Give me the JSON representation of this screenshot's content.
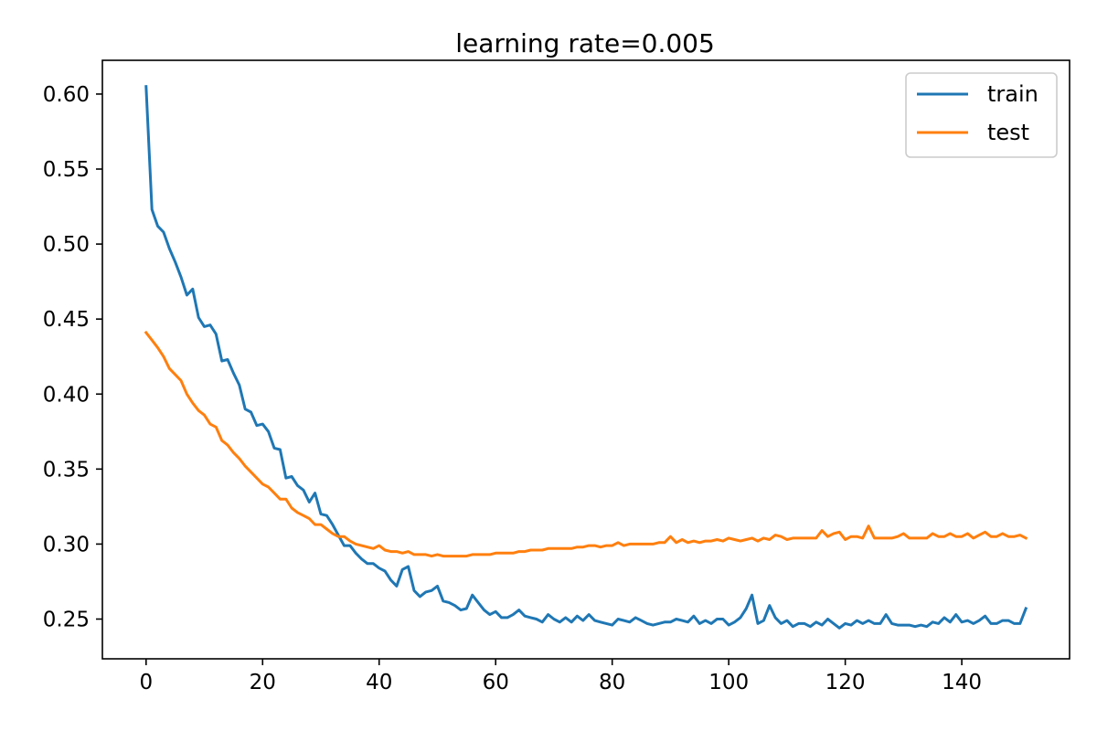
{
  "chart_data": {
    "type": "line",
    "title": "learning rate=0.005",
    "xlabel": "",
    "ylabel": "",
    "xlim": [
      -7.5,
      158.5
    ],
    "ylim": [
      0.2235,
      0.6225
    ],
    "xticks": [
      0,
      20,
      40,
      60,
      80,
      100,
      120,
      140
    ],
    "yticks": [
      0.25,
      0.3,
      0.35,
      0.4,
      0.45,
      0.5,
      0.55,
      0.6
    ],
    "ytick_labels": [
      "0.25",
      "0.30",
      "0.35",
      "0.40",
      "0.45",
      "0.50",
      "0.55",
      "0.60"
    ],
    "grid": false,
    "legend_position": "top-right",
    "series": [
      {
        "name": "train",
        "color": "#1f77b4",
        "values": [
          0.605,
          0.523,
          0.512,
          0.508,
          0.497,
          0.488,
          0.478,
          0.466,
          0.47,
          0.451,
          0.445,
          0.446,
          0.44,
          0.422,
          0.423,
          0.414,
          0.406,
          0.39,
          0.388,
          0.379,
          0.38,
          0.375,
          0.364,
          0.363,
          0.344,
          0.345,
          0.339,
          0.336,
          0.328,
          0.334,
          0.32,
          0.319,
          0.313,
          0.306,
          0.299,
          0.299,
          0.294,
          0.29,
          0.287,
          0.287,
          0.284,
          0.282,
          0.276,
          0.272,
          0.283,
          0.285,
          0.269,
          0.265,
          0.268,
          0.269,
          0.272,
          0.262,
          0.261,
          0.259,
          0.256,
          0.257,
          0.266,
          0.261,
          0.256,
          0.253,
          0.255,
          0.251,
          0.251,
          0.253,
          0.256,
          0.252,
          0.251,
          0.25,
          0.248,
          0.253,
          0.25,
          0.248,
          0.251,
          0.248,
          0.252,
          0.249,
          0.253,
          0.249,
          0.248,
          0.247,
          0.246,
          0.25,
          0.249,
          0.248,
          0.251,
          0.249,
          0.247,
          0.246,
          0.247,
          0.248,
          0.248,
          0.25,
          0.249,
          0.248,
          0.252,
          0.247,
          0.249,
          0.247,
          0.25,
          0.25,
          0.246,
          0.248,
          0.251,
          0.257,
          0.266,
          0.247,
          0.249,
          0.259,
          0.251,
          0.247,
          0.249,
          0.245,
          0.247,
          0.247,
          0.245,
          0.248,
          0.246,
          0.25,
          0.247,
          0.244,
          0.247,
          0.246,
          0.249,
          0.247,
          0.249,
          0.247,
          0.247,
          0.253,
          0.247,
          0.246,
          0.246,
          0.246,
          0.245,
          0.246,
          0.245,
          0.248,
          0.247,
          0.251,
          0.248,
          0.253,
          0.248,
          0.249,
          0.247,
          0.249,
          0.252,
          0.247,
          0.247,
          0.249,
          0.249,
          0.247,
          0.247,
          0.257
        ]
      },
      {
        "name": "test",
        "color": "#ff7f0e",
        "values": [
          0.441,
          0.436,
          0.431,
          0.425,
          0.417,
          0.413,
          0.409,
          0.4,
          0.394,
          0.389,
          0.386,
          0.38,
          0.378,
          0.369,
          0.366,
          0.361,
          0.357,
          0.352,
          0.348,
          0.344,
          0.34,
          0.338,
          0.334,
          0.33,
          0.33,
          0.324,
          0.321,
          0.319,
          0.317,
          0.313,
          0.313,
          0.31,
          0.307,
          0.305,
          0.305,
          0.302,
          0.3,
          0.299,
          0.298,
          0.297,
          0.299,
          0.296,
          0.295,
          0.295,
          0.294,
          0.295,
          0.293,
          0.293,
          0.293,
          0.292,
          0.293,
          0.292,
          0.292,
          0.292,
          0.292,
          0.292,
          0.293,
          0.293,
          0.293,
          0.293,
          0.294,
          0.294,
          0.294,
          0.294,
          0.295,
          0.295,
          0.296,
          0.296,
          0.296,
          0.297,
          0.297,
          0.297,
          0.297,
          0.297,
          0.298,
          0.298,
          0.299,
          0.299,
          0.298,
          0.299,
          0.299,
          0.301,
          0.299,
          0.3,
          0.3,
          0.3,
          0.3,
          0.3,
          0.301,
          0.301,
          0.305,
          0.301,
          0.303,
          0.301,
          0.302,
          0.301,
          0.302,
          0.302,
          0.303,
          0.302,
          0.304,
          0.303,
          0.302,
          0.303,
          0.304,
          0.302,
          0.304,
          0.303,
          0.306,
          0.305,
          0.303,
          0.304,
          0.304,
          0.304,
          0.304,
          0.304,
          0.309,
          0.305,
          0.307,
          0.308,
          0.303,
          0.305,
          0.305,
          0.304,
          0.312,
          0.304,
          0.304,
          0.304,
          0.304,
          0.305,
          0.307,
          0.304,
          0.304,
          0.304,
          0.304,
          0.307,
          0.305,
          0.305,
          0.307,
          0.305,
          0.305,
          0.307,
          0.304,
          0.306,
          0.308,
          0.305,
          0.305,
          0.307,
          0.305,
          0.305,
          0.306,
          0.304
        ]
      }
    ]
  }
}
